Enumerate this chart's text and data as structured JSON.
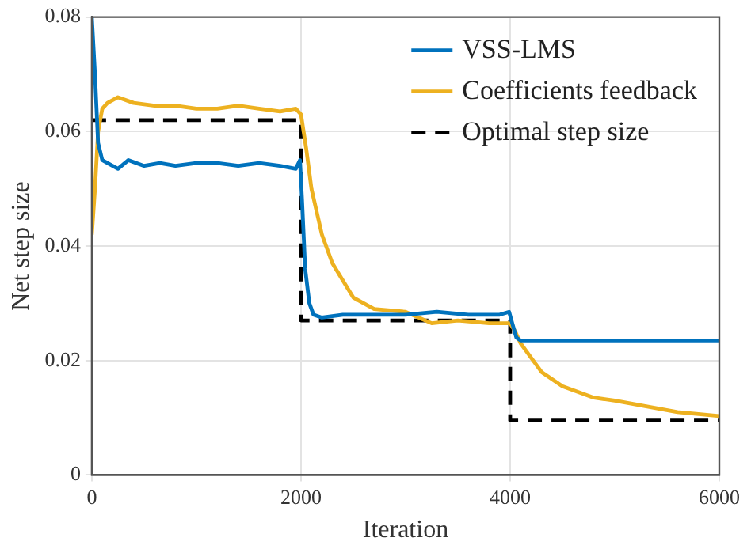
{
  "chart_data": {
    "type": "line",
    "xlabel": "Iteration",
    "ylabel": "Net step size",
    "xlim": [
      0,
      6000
    ],
    "xticks": [
      0,
      2000,
      4000,
      6000
    ],
    "ylim": [
      0,
      0.08
    ],
    "yticks": [
      0,
      0.02,
      0.04,
      0.06,
      0.08
    ],
    "grid": true,
    "legend": "top right",
    "marker": "none",
    "series": [
      {
        "name": "VSS-LMS",
        "color": "#0072bd",
        "line_style": "solid",
        "x": [
          0,
          30,
          60,
          100,
          150,
          250,
          350,
          500,
          650,
          800,
          1000,
          1200,
          1400,
          1600,
          1800,
          1950,
          1990,
          2010,
          2040,
          2080,
          2120,
          2200,
          2400,
          2700,
          3000,
          3300,
          3600,
          3900,
          3990,
          4020,
          4060,
          4100,
          4300,
          4600,
          5000,
          5400,
          5800,
          6000
        ],
        "values": [
          0.08,
          0.07,
          0.058,
          0.055,
          0.0545,
          0.0535,
          0.055,
          0.054,
          0.0545,
          0.054,
          0.0545,
          0.0545,
          0.054,
          0.0545,
          0.054,
          0.0535,
          0.055,
          0.048,
          0.036,
          0.03,
          0.028,
          0.0275,
          0.028,
          0.028,
          0.028,
          0.0285,
          0.028,
          0.028,
          0.0285,
          0.0265,
          0.024,
          0.0235,
          0.0235,
          0.0235,
          0.0235,
          0.0235,
          0.0235,
          0.0235
        ]
      },
      {
        "name": "Coefficients feedback",
        "color": "#edb120",
        "line_style": "solid",
        "x": [
          0,
          30,
          60,
          100,
          150,
          250,
          400,
          600,
          800,
          1000,
          1200,
          1400,
          1600,
          1800,
          1950,
          2000,
          2050,
          2100,
          2200,
          2300,
          2400,
          2500,
          2700,
          3000,
          3250,
          3500,
          3800,
          4000,
          4050,
          4100,
          4200,
          4300,
          4500,
          4800,
          5000,
          5300,
          5600,
          6000
        ],
        "values": [
          0.042,
          0.05,
          0.06,
          0.064,
          0.065,
          0.066,
          0.065,
          0.0645,
          0.0645,
          0.064,
          0.064,
          0.0645,
          0.064,
          0.0635,
          0.064,
          0.063,
          0.057,
          0.05,
          0.042,
          0.037,
          0.034,
          0.031,
          0.029,
          0.0285,
          0.0265,
          0.027,
          0.0265,
          0.0265,
          0.025,
          0.023,
          0.0205,
          0.018,
          0.0155,
          0.0135,
          0.013,
          0.012,
          0.011,
          0.0103
        ]
      },
      {
        "name": "Optimal step size",
        "color": "#000000",
        "line_style": "dashed",
        "x": [
          0,
          2000,
          2000,
          4000,
          4000,
          6000
        ],
        "values": [
          0.062,
          0.062,
          0.027,
          0.027,
          0.0095,
          0.0095
        ]
      }
    ]
  }
}
